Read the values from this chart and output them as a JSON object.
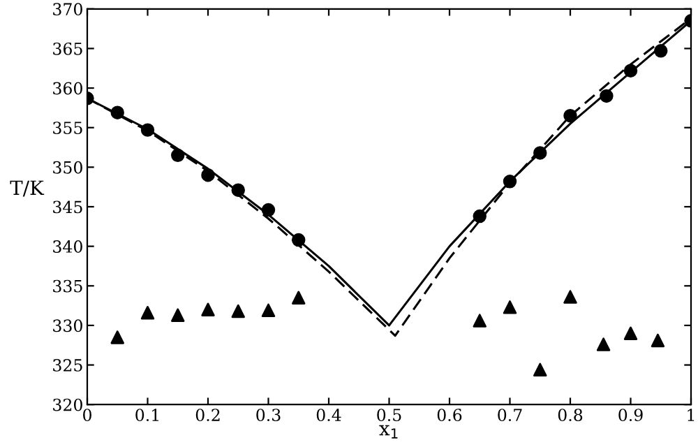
{
  "chart_data": {
    "type": "scatter",
    "xlabel": "x$_{1}$",
    "ylabel": "T/K",
    "xlim": [
      0,
      1
    ],
    "ylim": [
      320,
      370
    ],
    "xticks": [
      0,
      0.1,
      0.2,
      0.3,
      0.4,
      0.5,
      0.6,
      0.7,
      0.8,
      0.9,
      1
    ],
    "yticks": [
      320,
      325,
      330,
      335,
      340,
      345,
      350,
      355,
      360,
      365,
      370
    ],
    "grid": false,
    "legend": false,
    "series": [
      {
        "type": "line",
        "line_style": "solid",
        "marker": "none",
        "color": "#000000",
        "x": [
          0,
          0.1,
          0.2,
          0.3,
          0.4,
          0.5,
          0.6,
          0.7,
          0.8,
          0.9,
          1
        ],
        "values": [
          358.7,
          354.8,
          349.8,
          344.0,
          337.5,
          330.0,
          340.0,
          348.2,
          355.5,
          362.0,
          368.5
        ]
      },
      {
        "type": "line",
        "line_style": "dashed",
        "marker": "none",
        "color": "#000000",
        "x": [
          0,
          0.1,
          0.2,
          0.3,
          0.4,
          0.51,
          0.6,
          0.7,
          0.8,
          0.9,
          1
        ],
        "values": [
          358.7,
          354.6,
          349.5,
          343.5,
          336.8,
          328.7,
          338.5,
          348.0,
          356.5,
          363.0,
          368.8
        ]
      },
      {
        "marker": "circle",
        "color": "#000000",
        "x": [
          0,
          0.05,
          0.1,
          0.15,
          0.2,
          0.25,
          0.3,
          0.35,
          0.65,
          0.7,
          0.75,
          0.8,
          0.86,
          0.9,
          0.95,
          1
        ],
        "values": [
          358.7,
          356.9,
          354.7,
          351.5,
          349.0,
          347.1,
          344.6,
          340.8,
          343.8,
          348.2,
          351.8,
          356.5,
          359.0,
          362.2,
          364.7,
          368.5
        ]
      },
      {
        "marker": "triangle",
        "color": "#000000",
        "x": [
          0.05,
          0.1,
          0.15,
          0.2,
          0.25,
          0.3,
          0.35,
          0.65,
          0.7,
          0.75,
          0.8,
          0.855,
          0.9,
          0.945
        ],
        "values": [
          328.5,
          331.6,
          331.3,
          332.0,
          331.8,
          331.9,
          333.5,
          330.6,
          332.3,
          324.4,
          333.6,
          327.6,
          329.0,
          328.1
        ]
      }
    ]
  }
}
